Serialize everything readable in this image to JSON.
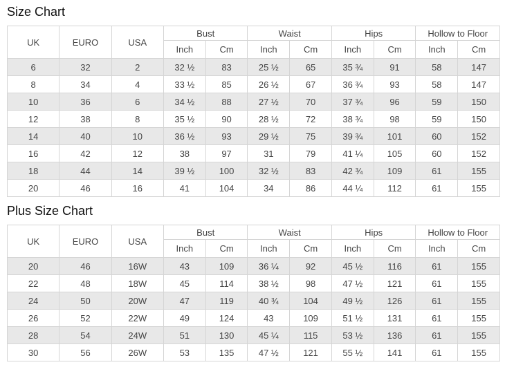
{
  "colors": {
    "row_stripe": "#e8e8e8",
    "table_border": "#d5d5d5",
    "cell_text": "#454545",
    "title_text": "#111111",
    "background": "#ffffff"
  },
  "tables": [
    {
      "title": "Size Chart",
      "header": {
        "plain_cols": [
          "UK",
          "EURO",
          "USA"
        ],
        "grouped_cols": [
          "Bust",
          "Waist",
          "Hips",
          "Hollow to Floor"
        ],
        "sub_cols": [
          "Inch",
          "Cm"
        ]
      },
      "rows": [
        [
          "6",
          "32",
          "2",
          "32 ½",
          "83",
          "25 ½",
          "65",
          "35 ¾",
          "91",
          "58",
          "147"
        ],
        [
          "8",
          "34",
          "4",
          "33 ½",
          "85",
          "26 ½",
          "67",
          "36 ¾",
          "93",
          "58",
          "147"
        ],
        [
          "10",
          "36",
          "6",
          "34 ½",
          "88",
          "27 ½",
          "70",
          "37 ¾",
          "96",
          "59",
          "150"
        ],
        [
          "12",
          "38",
          "8",
          "35 ½",
          "90",
          "28 ½",
          "72",
          "38 ¾",
          "98",
          "59",
          "150"
        ],
        [
          "14",
          "40",
          "10",
          "36 ½",
          "93",
          "29 ½",
          "75",
          "39 ¾",
          "101",
          "60",
          "152"
        ],
        [
          "16",
          "42",
          "12",
          "38",
          "97",
          "31",
          "79",
          "41 ¼",
          "105",
          "60",
          "152"
        ],
        [
          "18",
          "44",
          "14",
          "39 ½",
          "100",
          "32 ½",
          "83",
          "42 ¾",
          "109",
          "61",
          "155"
        ],
        [
          "20",
          "46",
          "16",
          "41",
          "104",
          "34",
          "86",
          "44 ¼",
          "112",
          "61",
          "155"
        ]
      ]
    },
    {
      "title": "Plus Size Chart",
      "header": {
        "plain_cols": [
          "UK",
          "EURO",
          "USA"
        ],
        "grouped_cols": [
          "Bust",
          "Waist",
          "Hips",
          "Hollow to Floor"
        ],
        "sub_cols": [
          "Inch",
          "Cm"
        ]
      },
      "rows": [
        [
          "20",
          "46",
          "16W",
          "43",
          "109",
          "36 ¼",
          "92",
          "45 ½",
          "116",
          "61",
          "155"
        ],
        [
          "22",
          "48",
          "18W",
          "45",
          "114",
          "38 ½",
          "98",
          "47 ½",
          "121",
          "61",
          "155"
        ],
        [
          "24",
          "50",
          "20W",
          "47",
          "119",
          "40 ¾",
          "104",
          "49 ½",
          "126",
          "61",
          "155"
        ],
        [
          "26",
          "52",
          "22W",
          "49",
          "124",
          "43",
          "109",
          "51 ½",
          "131",
          "61",
          "155"
        ],
        [
          "28",
          "54",
          "24W",
          "51",
          "130",
          "45 ¼",
          "115",
          "53 ½",
          "136",
          "61",
          "155"
        ],
        [
          "30",
          "56",
          "26W",
          "53",
          "135",
          "47 ½",
          "121",
          "55 ½",
          "141",
          "61",
          "155"
        ]
      ]
    }
  ]
}
